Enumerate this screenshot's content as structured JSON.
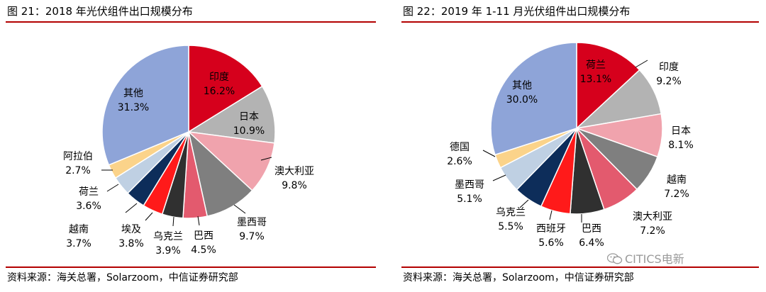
{
  "chart_data": [
    {
      "type": "pie",
      "title": "图 21：2018 年光伏组件出口规模分布",
      "source": "资料来源：海关总署，Solarzoom，中信证券研究部",
      "slices": [
        {
          "label": "印度",
          "value": 16.2,
          "value_text": "16.2%",
          "color": "#d6001c",
          "label_color": "#000000",
          "label_pos": "inside"
        },
        {
          "label": "日本",
          "value": 10.9,
          "value_text": "10.9%",
          "color": "#b3b3b3",
          "label_color": "#000000",
          "label_pos": "inside"
        },
        {
          "label": "澳大利亚",
          "value": 9.8,
          "value_text": "9.8%",
          "color": "#f0a3ad",
          "label_color": "#000000",
          "label_pos": "outside"
        },
        {
          "label": "墨西哥",
          "value": 9.7,
          "value_text": "9.7%",
          "color": "#7f7f7f",
          "label_color": "#000000",
          "label_pos": "outside"
        },
        {
          "label": "巴西",
          "value": 4.5,
          "value_text": "4.5%",
          "color": "#e35a6e",
          "label_color": "#000000",
          "label_pos": "outside"
        },
        {
          "label": "乌克兰",
          "value": 3.9,
          "value_text": "3.9%",
          "color": "#303030",
          "label_color": "#000000",
          "label_pos": "outside"
        },
        {
          "label": "埃及",
          "value": 3.8,
          "value_text": "3.8%",
          "color": "#ff1a1a",
          "label_color": "#000000",
          "label_pos": "outside"
        },
        {
          "label": "越南",
          "value": 3.7,
          "value_text": "3.7%",
          "color": "#0d2d5a",
          "label_color": "#000000",
          "label_pos": "outside"
        },
        {
          "label": "荷兰",
          "value": 3.6,
          "value_text": "3.6%",
          "color": "#bfd0e3",
          "label_color": "#000000",
          "label_pos": "outside"
        },
        {
          "label": "阿拉伯",
          "value": 2.7,
          "value_text": "2.7%",
          "color": "#fbd38a",
          "label_color": "#000000",
          "label_pos": "outside"
        },
        {
          "label": "其他",
          "value": 31.3,
          "value_text": "31.3%",
          "color": "#8ea4d8",
          "label_color": "#000000",
          "label_pos": "inside"
        }
      ]
    },
    {
      "type": "pie",
      "title": "图 22：2019 年 1-11 月光伏组件出口规模分布",
      "source": "资料来源：海关总署，Solarzoom，中信证券研究部",
      "slices": [
        {
          "label": "荷兰",
          "value": 13.1,
          "value_text": "13.1%",
          "color": "#d6001c",
          "label_color": "#000000",
          "label_pos": "inside"
        },
        {
          "label": "印度",
          "value": 9.2,
          "value_text": "9.2%",
          "color": "#b3b3b3",
          "label_color": "#000000",
          "label_pos": "outside"
        },
        {
          "label": "日本",
          "value": 8.1,
          "value_text": "8.1%",
          "color": "#f0a3ad",
          "label_color": "#000000",
          "label_pos": "outside"
        },
        {
          "label": "越南",
          "value": 7.2,
          "value_text": "7.2%",
          "color": "#7f7f7f",
          "label_color": "#000000",
          "label_pos": "outside"
        },
        {
          "label": "澳大利亚",
          "value": 7.2,
          "value_text": "7.2%",
          "color": "#e35a6e",
          "label_color": "#000000",
          "label_pos": "outside"
        },
        {
          "label": "巴西",
          "value": 6.4,
          "value_text": "6.4%",
          "color": "#303030",
          "label_color": "#000000",
          "label_pos": "outside"
        },
        {
          "label": "西班牙",
          "value": 5.6,
          "value_text": "5.6%",
          "color": "#ff1a1a",
          "label_color": "#000000",
          "label_pos": "outside"
        },
        {
          "label": "乌克兰",
          "value": 5.5,
          "value_text": "5.5%",
          "color": "#0d2d5a",
          "label_color": "#000000",
          "label_pos": "outside"
        },
        {
          "label": "墨西哥",
          "value": 5.1,
          "value_text": "5.1%",
          "color": "#bfd0e3",
          "label_color": "#000000",
          "label_pos": "outside"
        },
        {
          "label": "德国",
          "value": 2.6,
          "value_text": "2.6%",
          "color": "#fbd38a",
          "label_color": "#000000",
          "label_pos": "outside"
        },
        {
          "label": "其他",
          "value": 30.0,
          "value_text": "30.0%",
          "color": "#8ea4d8",
          "label_color": "#000000",
          "label_pos": "inside"
        }
      ]
    }
  ],
  "watermark": {
    "text": "CITICS电新",
    "icon": "wechat-icon"
  },
  "colors": {
    "rule": "#b30000"
  }
}
